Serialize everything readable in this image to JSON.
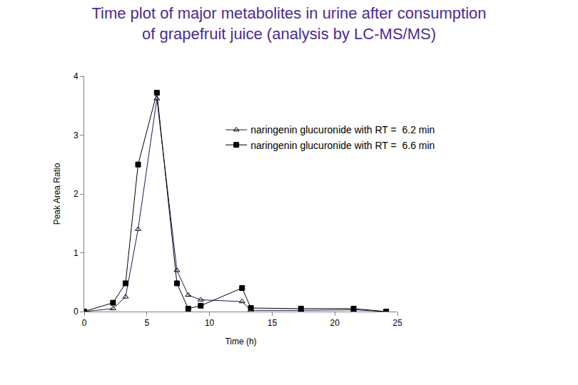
{
  "chart_data": {
    "type": "line",
    "title": "Time plot of major metabolites in urine after consumption\nof grapefruit juice (analysis by LC-MS/MS)",
    "x_label": "Time (h)",
    "y_label": "Peak Area Ratio",
    "x": [
      0,
      2.3,
      3.3,
      4.3,
      5.8,
      7.4,
      8.3,
      9.3,
      12.6,
      13.3,
      17.3,
      21.5,
      24.1
    ],
    "series": [
      {
        "name": "naringenin glucuronide with RT =  6.2 min",
        "color": "#1a1a5e",
        "marker": "triangle-open",
        "values": [
          0,
          0.05,
          0.25,
          1.4,
          3.62,
          0.7,
          0.28,
          0.2,
          0.17,
          0.02,
          0.02,
          0.03,
          0
        ]
      },
      {
        "name": "naringenin glucuronide with RT =  6.6 min",
        "color": "#000000",
        "marker": "square",
        "values": [
          0,
          0.15,
          0.48,
          2.5,
          3.72,
          0.48,
          0.05,
          0.1,
          0.4,
          0.06,
          0.05,
          0.05,
          0
        ]
      }
    ],
    "xlim": [
      0,
      25
    ],
    "xticks": [
      0,
      5,
      10,
      15,
      20,
      25
    ],
    "ylim": [
      0,
      4
    ],
    "yticks": [
      0,
      1,
      2,
      3,
      4
    ],
    "grid": false,
    "legend": "upper right"
  }
}
